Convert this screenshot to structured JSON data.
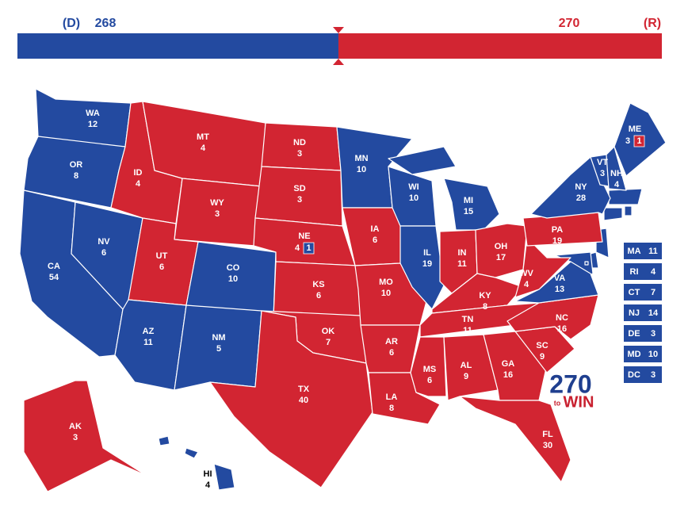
{
  "header": {
    "dem_label": "(D)",
    "dem_total": 268,
    "rep_total": 270,
    "rep_label": "(R)",
    "dem_color": "#234aa0",
    "rep_color": "#d22532"
  },
  "states": [
    {
      "abbr": "WA",
      "votes": 12,
      "color": "#234aa0"
    },
    {
      "abbr": "OR",
      "votes": 8,
      "color": "#234aa0"
    },
    {
      "abbr": "CA",
      "votes": 54,
      "color": "#234aa0"
    },
    {
      "abbr": "NV",
      "votes": 6,
      "color": "#234aa0"
    },
    {
      "abbr": "ID",
      "votes": 4,
      "color": "#d22532"
    },
    {
      "abbr": "MT",
      "votes": 4,
      "color": "#d22532"
    },
    {
      "abbr": "WY",
      "votes": 3,
      "color": "#d22532"
    },
    {
      "abbr": "UT",
      "votes": 6,
      "color": "#d22532"
    },
    {
      "abbr": "AZ",
      "votes": 11,
      "color": "#234aa0"
    },
    {
      "abbr": "CO",
      "votes": 10,
      "color": "#234aa0"
    },
    {
      "abbr": "NM",
      "votes": 5,
      "color": "#234aa0"
    },
    {
      "abbr": "ND",
      "votes": 3,
      "color": "#d22532"
    },
    {
      "abbr": "SD",
      "votes": 3,
      "color": "#d22532"
    },
    {
      "abbr": "NE",
      "votes": 4,
      "color": "#d22532",
      "split": {
        "votes": 1,
        "color": "#234aa0"
      }
    },
    {
      "abbr": "KS",
      "votes": 6,
      "color": "#d22532"
    },
    {
      "abbr": "OK",
      "votes": 7,
      "color": "#d22532"
    },
    {
      "abbr": "TX",
      "votes": 40,
      "color": "#d22532"
    },
    {
      "abbr": "MN",
      "votes": 10,
      "color": "#234aa0"
    },
    {
      "abbr": "IA",
      "votes": 6,
      "color": "#d22532"
    },
    {
      "abbr": "MO",
      "votes": 10,
      "color": "#d22532"
    },
    {
      "abbr": "AR",
      "votes": 6,
      "color": "#d22532"
    },
    {
      "abbr": "LA",
      "votes": 8,
      "color": "#d22532"
    },
    {
      "abbr": "WI",
      "votes": 10,
      "color": "#234aa0"
    },
    {
      "abbr": "IL",
      "votes": 19,
      "color": "#234aa0"
    },
    {
      "abbr": "MI",
      "votes": 15,
      "color": "#234aa0"
    },
    {
      "abbr": "IN",
      "votes": 11,
      "color": "#d22532"
    },
    {
      "abbr": "OH",
      "votes": 17,
      "color": "#d22532"
    },
    {
      "abbr": "KY",
      "votes": 8,
      "color": "#d22532"
    },
    {
      "abbr": "TN",
      "votes": 11,
      "color": "#d22532"
    },
    {
      "abbr": "MS",
      "votes": 6,
      "color": "#d22532"
    },
    {
      "abbr": "AL",
      "votes": 9,
      "color": "#d22532"
    },
    {
      "abbr": "GA",
      "votes": 16,
      "color": "#d22532"
    },
    {
      "abbr": "FL",
      "votes": 30,
      "color": "#d22532"
    },
    {
      "abbr": "SC",
      "votes": 9,
      "color": "#d22532"
    },
    {
      "abbr": "NC",
      "votes": 16,
      "color": "#d22532"
    },
    {
      "abbr": "VA",
      "votes": 13,
      "color": "#234aa0"
    },
    {
      "abbr": "WV",
      "votes": 4,
      "color": "#d22532"
    },
    {
      "abbr": "PA",
      "votes": 19,
      "color": "#d22532"
    },
    {
      "abbr": "NY",
      "votes": 28,
      "color": "#234aa0"
    },
    {
      "abbr": "VT",
      "votes": 3,
      "color": "#234aa0"
    },
    {
      "abbr": "NH",
      "votes": 4,
      "color": "#234aa0"
    },
    {
      "abbr": "ME",
      "votes": 3,
      "color": "#234aa0",
      "split": {
        "votes": 1,
        "color": "#d22532"
      }
    },
    {
      "abbr": "AK",
      "votes": 3,
      "color": "#d22532"
    },
    {
      "abbr": "HI",
      "votes": 4,
      "color": "#234aa0"
    }
  ],
  "small_states": [
    {
      "abbr": "MA",
      "votes": 11,
      "color": "#234aa0"
    },
    {
      "abbr": "RI",
      "votes": 4,
      "color": "#234aa0"
    },
    {
      "abbr": "CT",
      "votes": 7,
      "color": "#234aa0"
    },
    {
      "abbr": "NJ",
      "votes": 14,
      "color": "#234aa0"
    },
    {
      "abbr": "DE",
      "votes": 3,
      "color": "#234aa0"
    },
    {
      "abbr": "MD",
      "votes": 10,
      "color": "#234aa0"
    },
    {
      "abbr": "DC",
      "votes": 3,
      "color": "#234aa0"
    }
  ],
  "logo": {
    "number": "270",
    "small": "to",
    "word": "WIN"
  }
}
